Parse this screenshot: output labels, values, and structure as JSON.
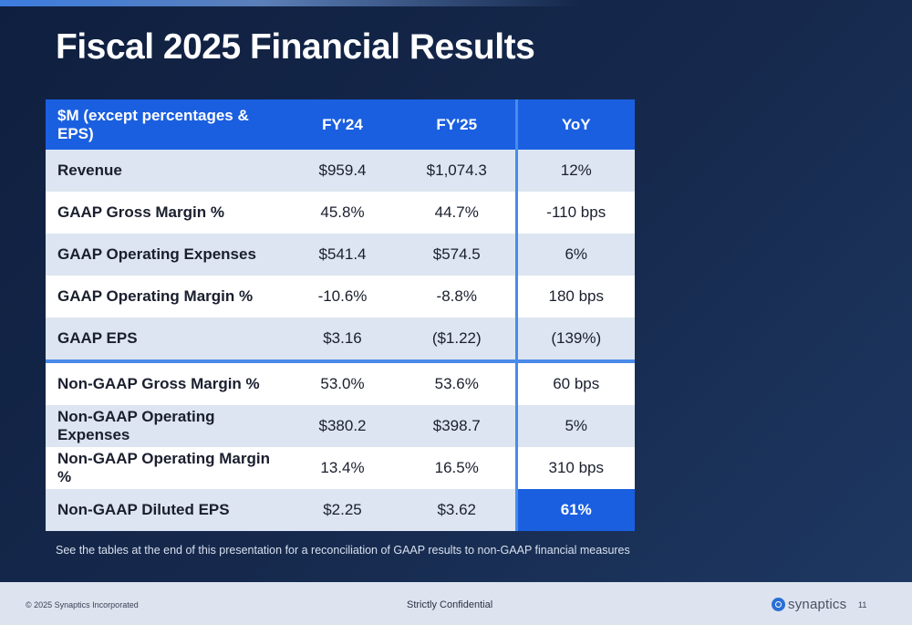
{
  "title": "Fiscal 2025 Financial Results",
  "table": {
    "headers": [
      "$M (except percentages & EPS)",
      "FY'24",
      "FY'25",
      "YoY"
    ],
    "rows": [
      {
        "label": "Revenue",
        "fy24": "$959.4",
        "fy25": "$1,074.3",
        "yoy": "12%"
      },
      {
        "label": "GAAP Gross Margin %",
        "fy24": "45.8%",
        "fy25": "44.7%",
        "yoy": "-110 bps"
      },
      {
        "label": "GAAP Operating Expenses",
        "fy24": "$541.4",
        "fy25": "$574.5",
        "yoy": "6%"
      },
      {
        "label": "GAAP Operating Margin %",
        "fy24": "-10.6%",
        "fy25": "-8.8%",
        "yoy": "180 bps"
      },
      {
        "label": "GAAP EPS",
        "fy24": "$3.16",
        "fy25": "($1.22)",
        "yoy": "(139%)"
      },
      {
        "label": "Non-GAAP Gross Margin %",
        "fy24": "53.0%",
        "fy25": "53.6%",
        "yoy": "60 bps"
      },
      {
        "label": "Non-GAAP Operating Expenses",
        "fy24": "$380.2",
        "fy25": "$398.7",
        "yoy": "5%"
      },
      {
        "label": "Non-GAAP Operating Margin %",
        "fy24": "13.4%",
        "fy25": "16.5%",
        "yoy": "310 bps"
      },
      {
        "label": "Non-GAAP Diluted EPS",
        "fy24": "$2.25",
        "fy25": "$3.62",
        "yoy": "61%"
      }
    ]
  },
  "footnote": "See the tables at the end of this presentation for a reconciliation of GAAP results to non-GAAP financial measures",
  "footer": {
    "copyright": "© 2025 Synaptics Incorporated",
    "confidential": "Strictly Confidential",
    "brand": "synaptics",
    "brand_mark": "®",
    "page_number": "11"
  },
  "colors": {
    "header_blue": "#1a5fe0",
    "divider_blue": "#4a8bea",
    "row_shade": "#dce5f1",
    "background_navy": "#15274a"
  },
  "icons": [
    "synaptics-logo-icon"
  ]
}
